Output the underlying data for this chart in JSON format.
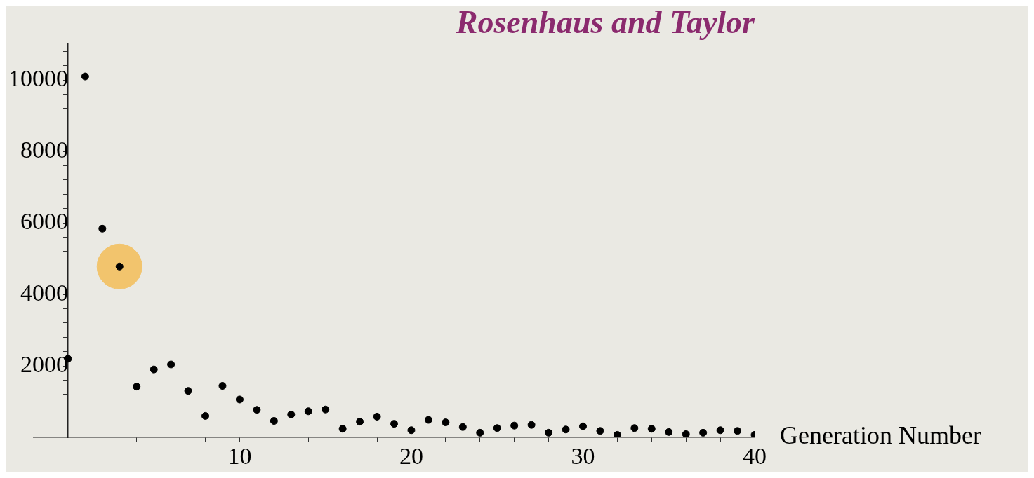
{
  "chart_data": {
    "type": "scatter",
    "title": "Rosenhaus and Taylor",
    "xlabel": "Generation Number",
    "xlim": [
      -2,
      40
    ],
    "ylim": [
      0,
      11000
    ],
    "xticks": [
      {
        "value": 2,
        "label": null
      },
      {
        "value": 4,
        "label": null
      },
      {
        "value": 6,
        "label": null
      },
      {
        "value": 8,
        "label": null
      },
      10,
      {
        "value": 12,
        "label": null
      },
      {
        "value": 14,
        "label": null
      },
      {
        "value": 16,
        "label": null
      },
      {
        "value": 18,
        "label": null
      },
      20,
      {
        "value": 22,
        "label": null
      },
      {
        "value": 24,
        "label": null
      },
      {
        "value": 26,
        "label": null
      },
      {
        "value": 28,
        "label": null
      },
      30,
      {
        "value": 32,
        "label": null
      },
      {
        "value": 34,
        "label": null
      },
      {
        "value": 36,
        "label": null
      },
      {
        "value": 38,
        "label": null
      },
      40
    ],
    "yticks": [
      {
        "value": 400,
        "label": null
      },
      {
        "value": 800,
        "label": null
      },
      {
        "value": 1200,
        "label": null
      },
      {
        "value": 1600,
        "label": null
      },
      2000,
      {
        "value": 2400,
        "label": null
      },
      {
        "value": 2800,
        "label": null
      },
      {
        "value": 3200,
        "label": null
      },
      {
        "value": 3600,
        "label": null
      },
      4000,
      {
        "value": 4400,
        "label": null
      },
      {
        "value": 4800,
        "label": null
      },
      {
        "value": 5200,
        "label": null
      },
      {
        "value": 5600,
        "label": null
      },
      6000,
      {
        "value": 6400,
        "label": null
      },
      {
        "value": 6800,
        "label": null
      },
      {
        "value": 7200,
        "label": null
      },
      {
        "value": 7600,
        "label": null
      },
      8000,
      {
        "value": 8400,
        "label": null
      },
      {
        "value": 8800,
        "label": null
      },
      {
        "value": 9200,
        "label": null
      },
      {
        "value": 9600,
        "label": null
      },
      10000,
      {
        "value": 10400,
        "label": null
      },
      {
        "value": 10800,
        "label": null
      }
    ],
    "grid": false,
    "legend": false,
    "marker": "circle",
    "series": [
      {
        "color": "#f2c46d",
        "x": [
          3
        ],
        "values": [
          4780
        ]
      },
      {
        "color": "#000000",
        "x": [
          0,
          1,
          2,
          3,
          4,
          5,
          6,
          7,
          8,
          9,
          10,
          11,
          12,
          13,
          14,
          15,
          16,
          17,
          18,
          19,
          20,
          21,
          22,
          23,
          24,
          25,
          26,
          27,
          28,
          29,
          30,
          31,
          32,
          33,
          34,
          35,
          36,
          37,
          38,
          39,
          40
        ],
        "values": [
          2200,
          10100,
          5840,
          4780,
          1420,
          1900,
          2040,
          1300,
          600,
          1440,
          1060,
          770,
          460,
          640,
          730,
          780,
          240,
          440,
          580,
          380,
          200,
          490,
          420,
          290,
          130,
          260,
          330,
          350,
          130,
          220,
          310,
          180,
          70,
          260,
          240,
          150,
          90,
          130,
          200,
          180,
          70
        ]
      }
    ]
  }
}
